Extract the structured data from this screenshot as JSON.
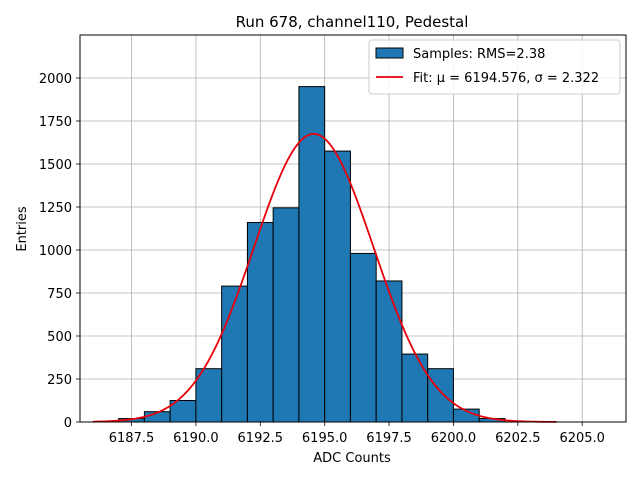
{
  "chart_data": {
    "type": "bar",
    "title": "Run 678, channel110, Pedestal",
    "xlabel": "ADC Counts",
    "ylabel": "Entries",
    "xlim": [
      6185.5,
      6206.7
    ],
    "ylim": [
      0,
      2250
    ],
    "xticks": [
      6187.5,
      6190.0,
      6192.5,
      6195.0,
      6197.5,
      6200.0,
      6202.5,
      6205.0
    ],
    "xtick_labels": [
      "6187.5",
      "6190.0",
      "6192.5",
      "6195.0",
      "6197.5",
      "6200.0",
      "6202.5",
      "6205.0"
    ],
    "yticks": [
      0,
      250,
      500,
      750,
      1000,
      1250,
      1500,
      1750,
      2000
    ],
    "ytick_labels": [
      "0",
      "250",
      "500",
      "750",
      "1000",
      "1250",
      "1500",
      "1750",
      "2000"
    ],
    "grid": true,
    "legend_position": "top-right",
    "bins": [
      {
        "x0": 6187.0,
        "x1": 6188.0,
        "value": 20
      },
      {
        "x0": 6188.0,
        "x1": 6189.0,
        "value": 60
      },
      {
        "x0": 6189.0,
        "x1": 6190.0,
        "value": 125
      },
      {
        "x0": 6190.0,
        "x1": 6191.0,
        "value": 310
      },
      {
        "x0": 6191.0,
        "x1": 6192.0,
        "value": 790
      },
      {
        "x0": 6192.0,
        "x1": 6193.0,
        "value": 1160
      },
      {
        "x0": 6193.0,
        "x1": 6194.0,
        "value": 1245
      },
      {
        "x0": 6194.0,
        "x1": 6195.0,
        "value": 1950
      },
      {
        "x0": 6195.0,
        "x1": 6196.0,
        "value": 1575
      },
      {
        "x0": 6196.0,
        "x1": 6197.0,
        "value": 980
      },
      {
        "x0": 6197.0,
        "x1": 6198.0,
        "value": 820
      },
      {
        "x0": 6198.0,
        "x1": 6199.0,
        "value": 395
      },
      {
        "x0": 6199.0,
        "x1": 6200.0,
        "value": 310
      },
      {
        "x0": 6200.0,
        "x1": 6201.0,
        "value": 75
      },
      {
        "x0": 6201.0,
        "x1": 6202.0,
        "value": 20
      }
    ],
    "fit": {
      "mu": 6194.576,
      "sigma": 2.322,
      "amplitude": 1675,
      "x_range": [
        6186.0,
        6204.0
      ]
    },
    "series": [
      {
        "name": "Samples: RMS=2.38",
        "kind": "histogram",
        "color": "#1f77b4"
      },
      {
        "name": "Fit: μ = 6194.576, σ = 2.322",
        "kind": "line",
        "color": "#e8000b"
      }
    ]
  }
}
